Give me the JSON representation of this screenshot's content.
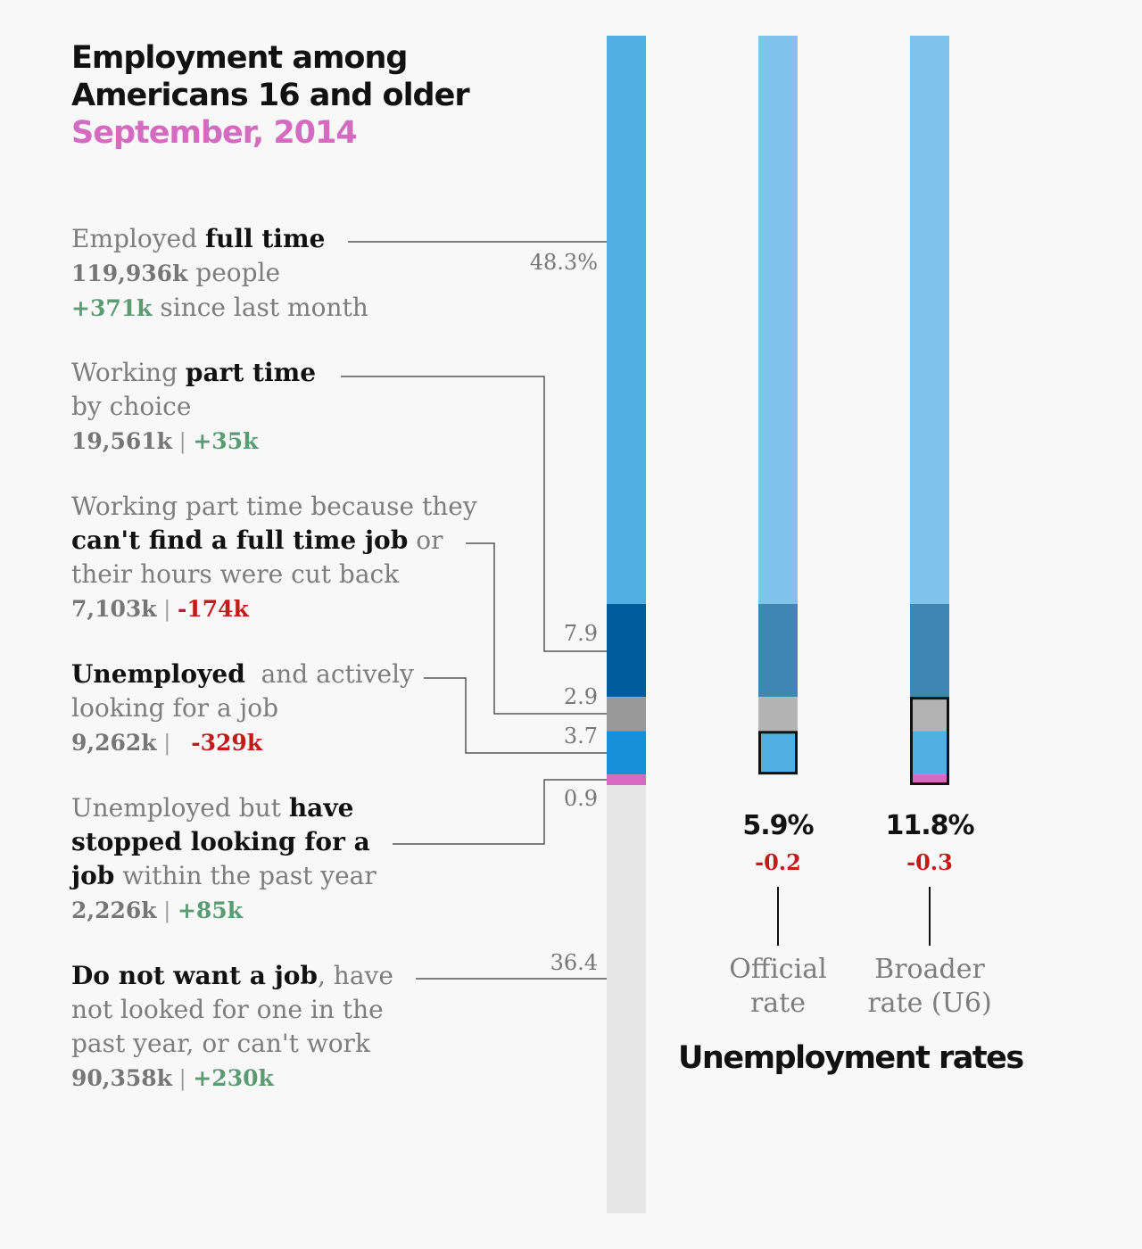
{
  "title": {
    "line1": "Employment among",
    "line2": "Americans 16 and older",
    "date": "September, 2014"
  },
  "categories": [
    {
      "id": "full-time",
      "text_a": "Employed ",
      "bold": "full time",
      "count": "119,936k",
      "count_suffix": " people",
      "change": "+371k",
      "change_suffix": " since last month",
      "change_dir": "pos"
    },
    {
      "id": "part-time-choice",
      "text_a": "Working ",
      "bold": "part time",
      "text_b": "by choice",
      "count": "19,561k",
      "change": "+35k",
      "change_dir": "pos"
    },
    {
      "id": "part-time-economic",
      "text_a": "Working part time because they",
      "bold": "can't find a full time job",
      "bold_suffix": " or",
      "text_b": "their hours were cut back",
      "count": "7,103k",
      "change": "-174k",
      "change_dir": "neg"
    },
    {
      "id": "unemployed-active",
      "bold": "Unemployed",
      "bold_suffix": "  and actively",
      "text_b": "looking for a job",
      "count": "9,262k",
      "change": "-329k",
      "change_dir": "neg"
    },
    {
      "id": "unemployed-stopped",
      "text_a": "Unemployed but ",
      "bold": "have",
      "bold2": "stopped looking for a",
      "bold3": "job",
      "bold3_suffix": " within the past year",
      "count": "2,226k",
      "change": "+85k",
      "change_dir": "pos"
    },
    {
      "id": "not-want-job",
      "bold": "Do not want a job",
      "bold_suffix": ", have",
      "text_b": "not looked for one in the",
      "text_c": "past year, or can't work",
      "count": "90,358k",
      "change": "+230k",
      "change_dir": "pos"
    }
  ],
  "chart_data": {
    "type": "bar",
    "stacked": true,
    "orientation": "vertical",
    "title": "Employment among Americans 16 and older",
    "subtitle": "September, 2014",
    "unit": "percent of Americans 16 and older",
    "segments": [
      {
        "name": "Employed full time",
        "value": 48.3,
        "label": "48.3%",
        "color": "#52afe3"
      },
      {
        "name": "Working part time by choice",
        "value": 7.9,
        "label": "7.9",
        "color": "#005c9c"
      },
      {
        "name": "Working part time because they can't find a full time job or their hours were cut back",
        "value": 2.9,
        "label": "2.9",
        "color": "#999999"
      },
      {
        "name": "Unemployed and actively looking for a job",
        "value": 3.7,
        "label": "3.7",
        "color": "#178fd9"
      },
      {
        "name": "Unemployed but have stopped looking for a job within the past year",
        "value": 0.9,
        "label": "0.9",
        "color": "#d46bc1"
      },
      {
        "name": "Do not want a job, have not looked for one in the past year, or can't work",
        "value": 36.4,
        "label": "36.4",
        "color": "#e6e6e6"
      }
    ],
    "rate_bars": [
      {
        "name": "Official rate",
        "value": 5.9,
        "value_label": "5.9%",
        "change_label": "-0.2",
        "segment_colors": [
          "#7fc3ea",
          "#3f86b5",
          "#b3b3b3",
          "#52afe3",
          "#f8f8f8",
          "#f8f8f8"
        ],
        "highlight_segments": [
          "Unemployed and actively looking for a job"
        ]
      },
      {
        "name": "Broader rate (U6)",
        "value": 11.8,
        "value_label": "11.8%",
        "change_label": "-0.3",
        "segment_colors": [
          "#7fc3ea",
          "#3f86b5",
          "#b3b3b3",
          "#52afe3",
          "#d46bc1",
          "#f8f8f8"
        ],
        "highlight_segments": [
          "Working part time because they can't find a full time job or their hours were cut back",
          "Unemployed and actively looking for a job",
          "Unemployed but have stopped looking for a job within the past year"
        ]
      }
    ],
    "rates_title": "Unemployment rates",
    "rate_labels": [
      {
        "line1": "Official",
        "line2": "rate"
      },
      {
        "line1": "Broader",
        "line2": "rate (U6)"
      }
    ]
  }
}
